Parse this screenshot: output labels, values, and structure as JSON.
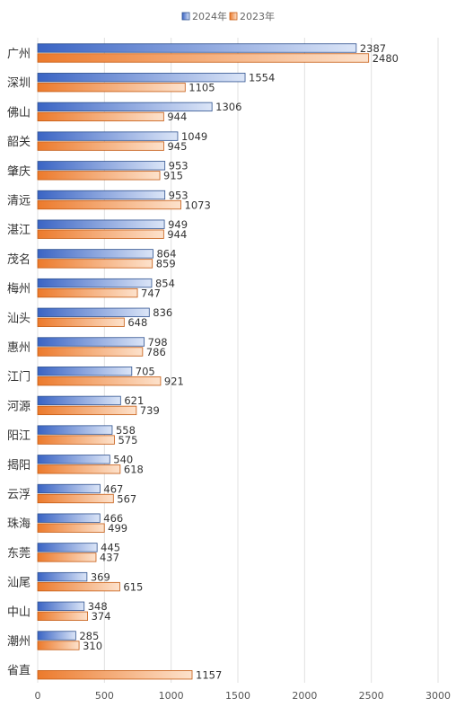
{
  "chart_data": {
    "type": "bar",
    "orientation": "horizontal",
    "title": "",
    "xlabel": "",
    "ylabel": "",
    "categories": [
      "广州",
      "深圳",
      "佛山",
      "韶关",
      "肇庆",
      "清远",
      "湛江",
      "茂名",
      "梅州",
      "汕头",
      "惠州",
      "江门",
      "河源",
      "阳江",
      "揭阳",
      "云浮",
      "珠海",
      "东莞",
      "汕尾",
      "中山",
      "潮州",
      "省直"
    ],
    "series": [
      {
        "name": "2024年",
        "color": "#4472C4",
        "values": [
          2387,
          1554,
          1306,
          1049,
          953,
          953,
          949,
          864,
          854,
          836,
          798,
          705,
          621,
          558,
          540,
          467,
          466,
          445,
          369,
          348,
          285,
          null
        ]
      },
      {
        "name": "2023年",
        "color": "#ED7D31",
        "values": [
          2480,
          1105,
          944,
          945,
          915,
          1073,
          944,
          859,
          747,
          648,
          786,
          921,
          739,
          575,
          618,
          567,
          499,
          437,
          615,
          374,
          310,
          1157
        ]
      }
    ],
    "xlim": [
      0,
      3000
    ],
    "xticks": [
      0,
      500,
      1000,
      1500,
      2000,
      2500,
      3000
    ],
    "xtick_labels": [
      "0",
      "500",
      "1000",
      "1500",
      "2000",
      "2500",
      "3000"
    ],
    "grid": "vertical",
    "legend": "top-center"
  }
}
